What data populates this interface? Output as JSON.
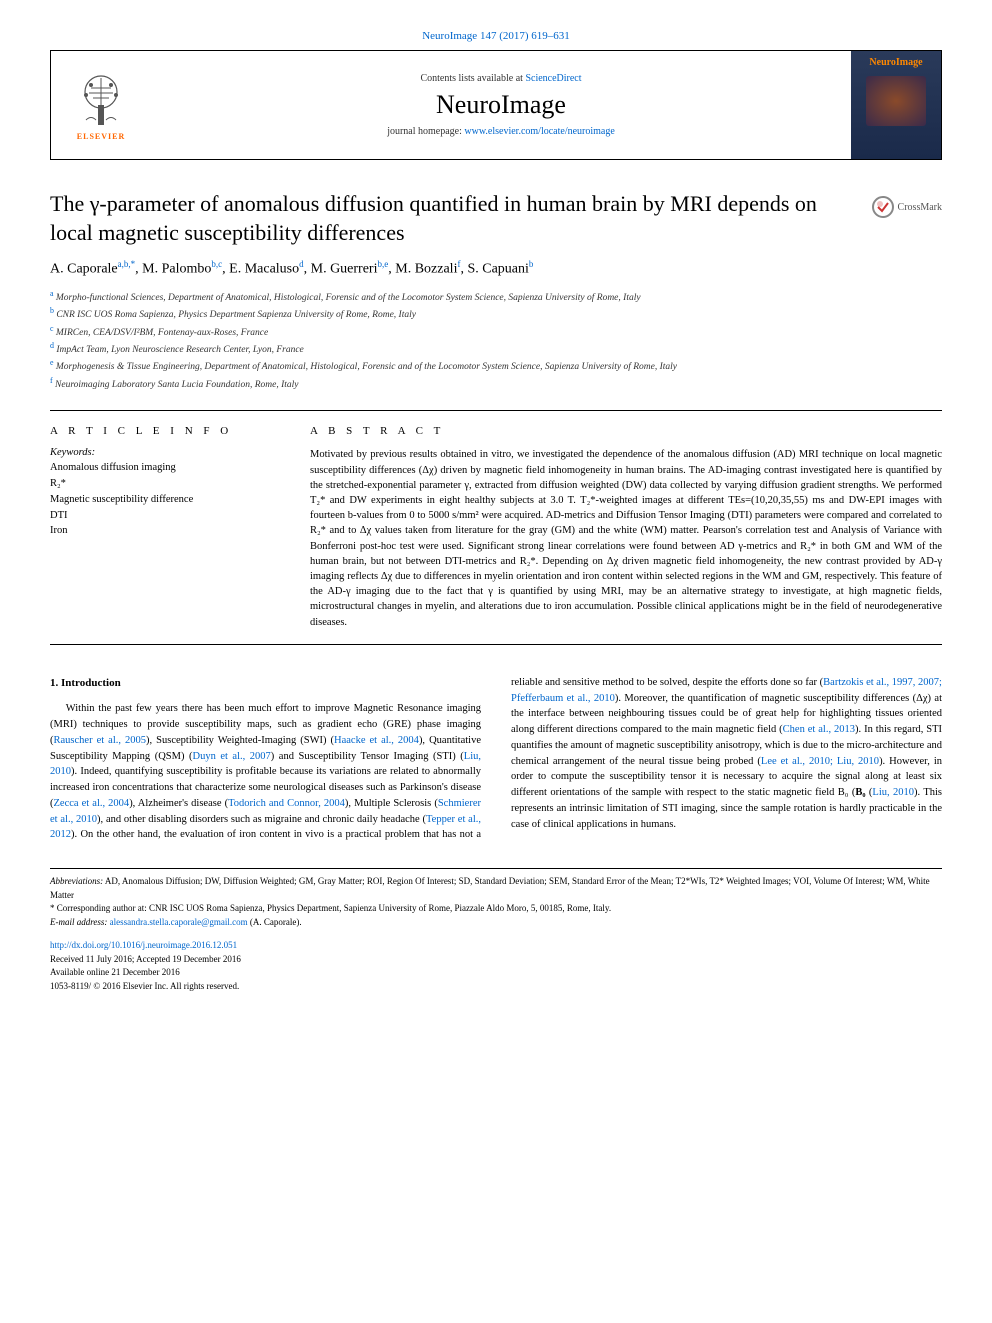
{
  "header": {
    "top_link": "NeuroImage 147 (2017) 619–631",
    "contents_text": "Contents lists available at ",
    "contents_link": "ScienceDirect",
    "journal_name": "NeuroImage",
    "homepage_text": "journal homepage: ",
    "homepage_link": "www.elsevier.com/locate/neuroimage",
    "elsevier_label": "ELSEVIER",
    "cover_label": "NeuroImage"
  },
  "article": {
    "title": "The γ-parameter of anomalous diffusion quantified in human brain by MRI depends on local magnetic susceptibility differences",
    "crossmark": "CrossMark",
    "authors_html": "A. Caporale",
    "authors": [
      {
        "n": "A. Caporale",
        "s": "a,b,*"
      },
      {
        "n": "M. Palombo",
        "s": "b,c"
      },
      {
        "n": "E. Macaluso",
        "s": "d"
      },
      {
        "n": "M. Guerreri",
        "s": "b,e"
      },
      {
        "n": "M. Bozzali",
        "s": "f"
      },
      {
        "n": "S. Capuani",
        "s": "b"
      }
    ],
    "affiliations": [
      {
        "s": "a",
        "t": "Morpho-functional Sciences, Department of Anatomical, Histological, Forensic and of the Locomotor System Science, Sapienza University of Rome, Italy"
      },
      {
        "s": "b",
        "t": "CNR ISC UOS Roma Sapienza, Physics Department Sapienza University of Rome, Rome, Italy"
      },
      {
        "s": "c",
        "t": "MIRCen, CEA/DSV/I²BM, Fontenay-aux-Roses, France"
      },
      {
        "s": "d",
        "t": "ImpAct Team, Lyon Neuroscience Research Center, Lyon, France"
      },
      {
        "s": "e",
        "t": "Morphogenesis & Tissue Engineering, Department of Anatomical, Histological, Forensic and of the Locomotor System Science, Sapienza University of Rome, Italy"
      },
      {
        "s": "f",
        "t": "Neuroimaging Laboratory Santa Lucia Foundation, Rome, Italy"
      }
    ]
  },
  "info": {
    "label": "A R T I C L E  I N F O",
    "keywords_label": "Keywords:",
    "keywords": [
      "Anomalous diffusion imaging",
      "R₂*",
      "Magnetic susceptibility difference",
      "DTI",
      "Iron"
    ]
  },
  "abstract": {
    "label": "A B S T R A C T",
    "text": "Motivated by previous results obtained in vitro, we investigated the dependence of the anomalous diffusion (AD) MRI technique on local magnetic susceptibility differences (Δχ) driven by magnetic field inhomogeneity in human brains. The AD-imaging contrast investigated here is quantified by the stretched-exponential parameter γ, extracted from diffusion weighted (DW) data collected by varying diffusion gradient strengths. We performed T₂* and DW experiments in eight healthy subjects at 3.0 T. T₂*-weighted images at different TEs=(10,20,35,55) ms and DW-EPI images with fourteen b-values from 0 to 5000 s/mm² were acquired. AD-metrics and Diffusion Tensor Imaging (DTI) parameters were compared and correlated to R₂* and to Δχ values taken from literature for the gray (GM) and the white (WM) matter. Pearson's correlation test and Analysis of Variance with Bonferroni post-hoc test were used. Significant strong linear correlations were found between AD γ-metrics and R₂* in both GM and WM of the human brain, but not between DTI-metrics and R₂*. Depending on Δχ driven magnetic field inhomogeneity, the new contrast provided by AD-γ imaging reflects Δχ due to differences in myelin orientation and iron content within selected regions in the WM and GM, respectively. This feature of the AD-γ imaging due to the fact that γ is quantified by using MRI, may be an alternative strategy to investigate, at high magnetic fields, microstructural changes in myelin, and alterations due to iron accumulation. Possible clinical applications might be in the field of neurodegenerative diseases."
  },
  "body": {
    "heading": "1. Introduction",
    "p1a": "Within the past few years there has been much effort to improve Magnetic Resonance imaging (MRI) techniques to provide susceptibility maps, such as gradient echo (GRE) phase imaging (",
    "r1": "Rauscher et al., 2005",
    "p1b": "), Susceptibility Weighted-Imaging (SWI) (",
    "r2": "Haacke et al., 2004",
    "p1c": "), Quantitative Susceptibility Mapping (QSM) (",
    "r3": "Duyn et al., 2007",
    "p1d": ") and Susceptibility Tensor Imaging (STI) (",
    "r4": "Liu, 2010",
    "p1e": "). Indeed, quantifying susceptibility is profitable because its variations are related to abnormally increased iron concentrations that characterize some neurological diseases such as Parkinson's disease (",
    "r5": "Zecca et al., 2004",
    "p1f": "), Alzheimer's disease (",
    "r6": "Todorich and Connor, 2004",
    "p1g": "), Multiple Sclerosis (",
    "r7": "Schmierer et al., 2010",
    "p1h": "), and other disabling disorders such as migraine and chronic daily headache (",
    "r8": "Tepper et al., 2012",
    "p1i": "). On the other hand, the evaluation of iron ",
    "p2a": "content in vivo is a practical problem that has not a reliable and sensitive method to be solved, despite the efforts done so far (",
    "r9": "Bartzokis et al., 1997, 2007; Pfefferbaum et al., 2010",
    "p2b": "). Moreover, the quantification of magnetic susceptibility differences (Δχ) at the interface between neighbouring tissues could be of great help for highlighting tissues oriented along different directions compared to the main magnetic field (",
    "r10": "Chen et al., 2013",
    "p2c": "). In this regard, STI quantifies the amount of magnetic susceptibility anisotropy, which is due to the micro-architecture and chemical arrangement of the neural tissue being probed (",
    "r11": "Lee et al., 2010; Liu, 2010",
    "p2d": "). However, in order to compute the susceptibility tensor it is necessary to acquire the signal along at least six different orientations of the sample with respect to the static magnetic field B₀ (",
    "r12": "Liu, 2010",
    "p2e": "). This represents an intrinsic limitation of STI imaging, since the sample rotation is hardly practicable in the case of clinical applications in humans."
  },
  "footer": {
    "abbrev_label": "Abbreviations:",
    "abbrev": " AD, Anomalous Diffusion; DW, Diffusion Weighted; GM, Gray Matter; ROI, Region Of Interest; SD, Standard Deviation; SEM, Standard Error of the Mean; T2*WIs, T2* Weighted Images; VOI, Volume Of Interest; WM, White Matter",
    "corr": "* Corresponding author at: CNR ISC UOS Roma Sapienza, Physics Department, Sapienza University of Rome, Piazzale Aldo Moro, 5, 00185, Rome, Italy.",
    "email_label": "E-mail address: ",
    "email": "alessandra.stella.caporale@gmail.com",
    "email_tail": " (A. Caporale).",
    "doi": "http://dx.doi.org/10.1016/j.neuroimage.2016.12.051",
    "received": "Received 11 July 2016; Accepted 19 December 2016",
    "available": "Available online 21 December 2016",
    "copyright": "1053-8119/ © 2016 Elsevier Inc. All rights reserved."
  }
}
